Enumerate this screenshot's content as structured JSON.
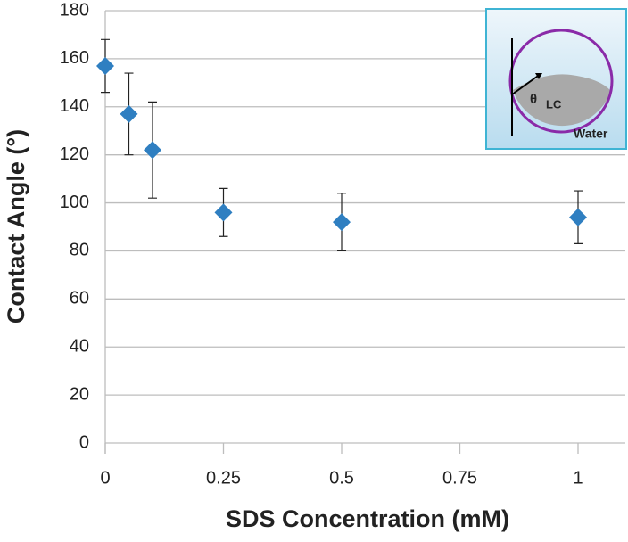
{
  "chart_data": {
    "type": "scatter",
    "x_label": "SDS Concentration (mM)",
    "y_label": "Contact Angle (°)",
    "x": [
      0,
      0.05,
      0.1,
      0.25,
      0.5,
      1
    ],
    "series": [
      {
        "color": "#2f7fc1",
        "values": [
          157,
          137,
          122,
          96,
          92,
          94
        ],
        "errors": [
          11,
          17,
          20,
          10,
          12,
          11
        ]
      }
    ],
    "xlim": [
      0,
      1.1
    ],
    "xticks": [
      0,
      0.25,
      0.5,
      0.75,
      1
    ],
    "ylim": [
      0,
      180
    ],
    "yticks": [
      0,
      20,
      40,
      60,
      80,
      100,
      120,
      140,
      160,
      180
    ],
    "grid": true,
    "inset": {
      "theta": "θ",
      "phase": "LC",
      "medium": "Water"
    }
  }
}
